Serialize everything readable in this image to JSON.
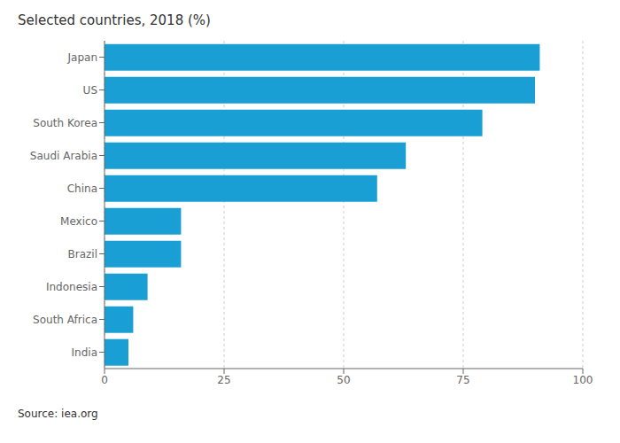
{
  "chart_data": {
    "type": "bar",
    "orientation": "horizontal",
    "subtitle": "Selected countries, 2018 (%)",
    "source": "Source: iea.org",
    "categories": [
      "Japan",
      "US",
      "South Korea",
      "Saudi Arabia",
      "China",
      "Mexico",
      "Brazil",
      "Indonesia",
      "South Africa",
      "India"
    ],
    "values": [
      91,
      90,
      79,
      63,
      57,
      16,
      16,
      9,
      6,
      5
    ],
    "color": "#1a9fd4",
    "xlim": [
      0,
      100
    ],
    "xticks": [
      0,
      25,
      50,
      75,
      100
    ],
    "grid": true
  }
}
